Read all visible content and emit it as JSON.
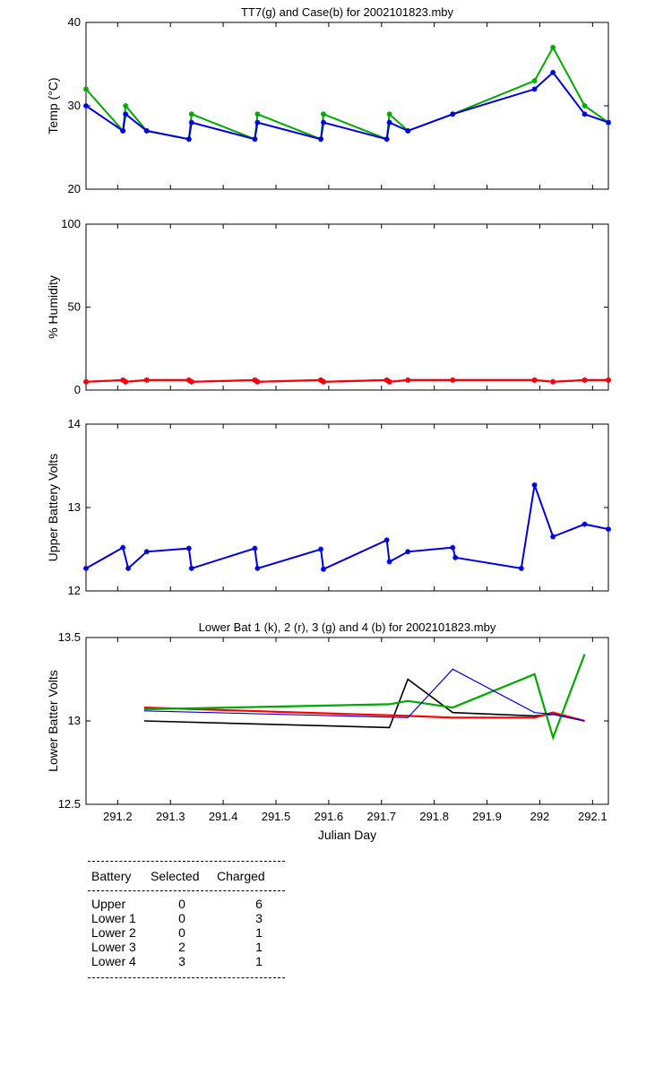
{
  "chart_data": [
    {
      "type": "line",
      "title": "TT7(g) and Case(b) for 2002101823.mby",
      "ylabel": "Temp  (°C)",
      "xlim": [
        291.14,
        292.13
      ],
      "ylim": [
        20,
        40
      ],
      "yticks": [
        "20",
        "30",
        "40"
      ],
      "series": [
        {
          "color": "#00aa00",
          "marker": "*",
          "x": [
            291.14,
            291.21,
            291.215,
            291.255,
            291.335,
            291.34,
            291.46,
            291.465,
            291.585,
            291.59,
            291.71,
            291.715,
            291.75,
            291.835,
            291.99,
            292.025,
            292.085,
            292.13
          ],
          "y": [
            32,
            27,
            30,
            27,
            26,
            29,
            26,
            29,
            26,
            29,
            26,
            29,
            27,
            29,
            33,
            37,
            30,
            28
          ]
        },
        {
          "color": "#0000dd",
          "marker": "*",
          "x": [
            291.14,
            291.21,
            291.215,
            291.255,
            291.335,
            291.34,
            291.46,
            291.465,
            291.585,
            291.59,
            291.71,
            291.715,
            291.75,
            291.835,
            291.99,
            292.025,
            292.085,
            292.13
          ],
          "y": [
            30,
            27,
            29,
            27,
            26,
            28,
            26,
            28,
            26,
            28,
            26,
            28,
            27,
            29,
            32,
            34,
            29,
            28
          ]
        }
      ]
    },
    {
      "type": "line",
      "title": "",
      "ylabel": "% Humidity",
      "xlim": [
        291.14,
        292.13
      ],
      "ylim": [
        0,
        100
      ],
      "yticks": [
        "0",
        "50",
        "100"
      ],
      "series": [
        {
          "color": "#0000dd",
          "marker": "*",
          "x": [
            291.14,
            291.21,
            291.215,
            291.255,
            291.335,
            291.34,
            291.46,
            291.465,
            291.585,
            291.59,
            291.71,
            291.715,
            291.75,
            291.835,
            291.99,
            292.025,
            292.085,
            292.13
          ],
          "y": [
            5,
            6,
            5,
            6,
            6,
            5,
            6,
            5,
            6,
            5,
            6,
            5,
            6,
            6,
            6,
            5,
            6,
            6
          ]
        },
        {
          "color": "#ff0000",
          "marker": "*",
          "x": [
            291.14,
            291.21,
            291.215,
            291.255,
            291.335,
            291.34,
            291.46,
            291.465,
            291.585,
            291.59,
            291.71,
            291.715,
            291.75,
            291.835,
            291.99,
            292.025,
            292.085,
            292.13
          ],
          "y": [
            5,
            6,
            5,
            6,
            6,
            5,
            6,
            5,
            6,
            5,
            6,
            5,
            6,
            6,
            6,
            5,
            6,
            6
          ]
        }
      ]
    },
    {
      "type": "line",
      "title": "",
      "ylabel": "Upper Battery Volts",
      "xlim": [
        291.14,
        292.13
      ],
      "ylim": [
        12,
        14
      ],
      "yticks": [
        "12",
        "13",
        "14"
      ],
      "series": [
        {
          "color": "#0000dd",
          "marker": "*",
          "x": [
            291.14,
            291.21,
            291.22,
            291.255,
            291.335,
            291.34,
            291.46,
            291.465,
            291.585,
            291.59,
            291.71,
            291.715,
            291.75,
            291.835,
            291.84,
            291.965,
            291.99,
            292.025,
            292.085,
            292.13
          ],
          "y": [
            12.27,
            12.52,
            12.27,
            12.47,
            12.51,
            12.27,
            12.51,
            12.27,
            12.5,
            12.26,
            12.61,
            12.35,
            12.47,
            12.52,
            12.4,
            12.27,
            13.27,
            12.65,
            12.8,
            12.74
          ]
        }
      ]
    },
    {
      "type": "line",
      "title": "Lower Bat 1 (k), 2 (r), 3 (g) and 4 (b) for 2002101823.mby",
      "ylabel": "Lower Batter Volts",
      "xlabel": "Julian Day",
      "xlim": [
        291.14,
        292.13
      ],
      "ylim": [
        12.5,
        13.5
      ],
      "yticks": [
        "12.5",
        "13",
        "13.5"
      ],
      "xticks": [
        "291.2",
        "291.3",
        "291.4",
        "291.5",
        "291.6",
        "291.7",
        "291.8",
        "291.9",
        "292",
        "292.1"
      ],
      "series": [
        {
          "color": "#000000",
          "x": [
            291.25,
            291.715,
            291.75,
            291.835,
            291.99,
            292.025,
            292.085
          ],
          "y": [
            13.0,
            12.96,
            13.25,
            13.05,
            13.03,
            13.04,
            13.0
          ]
        },
        {
          "color": "#ff0000",
          "x": [
            291.25,
            291.75,
            291.835,
            291.99,
            292.025,
            292.085
          ],
          "y": [
            13.08,
            13.03,
            13.02,
            13.02,
            13.05,
            13.0
          ]
        },
        {
          "color": "#00aa00",
          "x": [
            291.25,
            291.715,
            291.75,
            291.835,
            291.99,
            292.025,
            292.085
          ],
          "y": [
            13.07,
            13.1,
            13.12,
            13.08,
            13.28,
            12.9,
            13.4
          ]
        },
        {
          "color": "#0000dd",
          "x": [
            291.25,
            291.75,
            291.835,
            291.99,
            292.025,
            292.085
          ],
          "y": [
            13.06,
            13.02,
            13.31,
            13.05,
            13.04,
            13.0
          ]
        }
      ]
    }
  ],
  "table": {
    "headers": [
      "Battery",
      "Selected",
      "Charged"
    ],
    "rows": [
      {
        "battery": "Upper",
        "selected": "0",
        "charged": "6"
      },
      {
        "battery": "Lower 1",
        "selected": "0",
        "charged": "3"
      },
      {
        "battery": "Lower 2",
        "selected": "0",
        "charged": "1"
      },
      {
        "battery": "Lower 3",
        "selected": "2",
        "charged": "1"
      },
      {
        "battery": "Lower 4",
        "selected": "3",
        "charged": "1"
      }
    ]
  }
}
